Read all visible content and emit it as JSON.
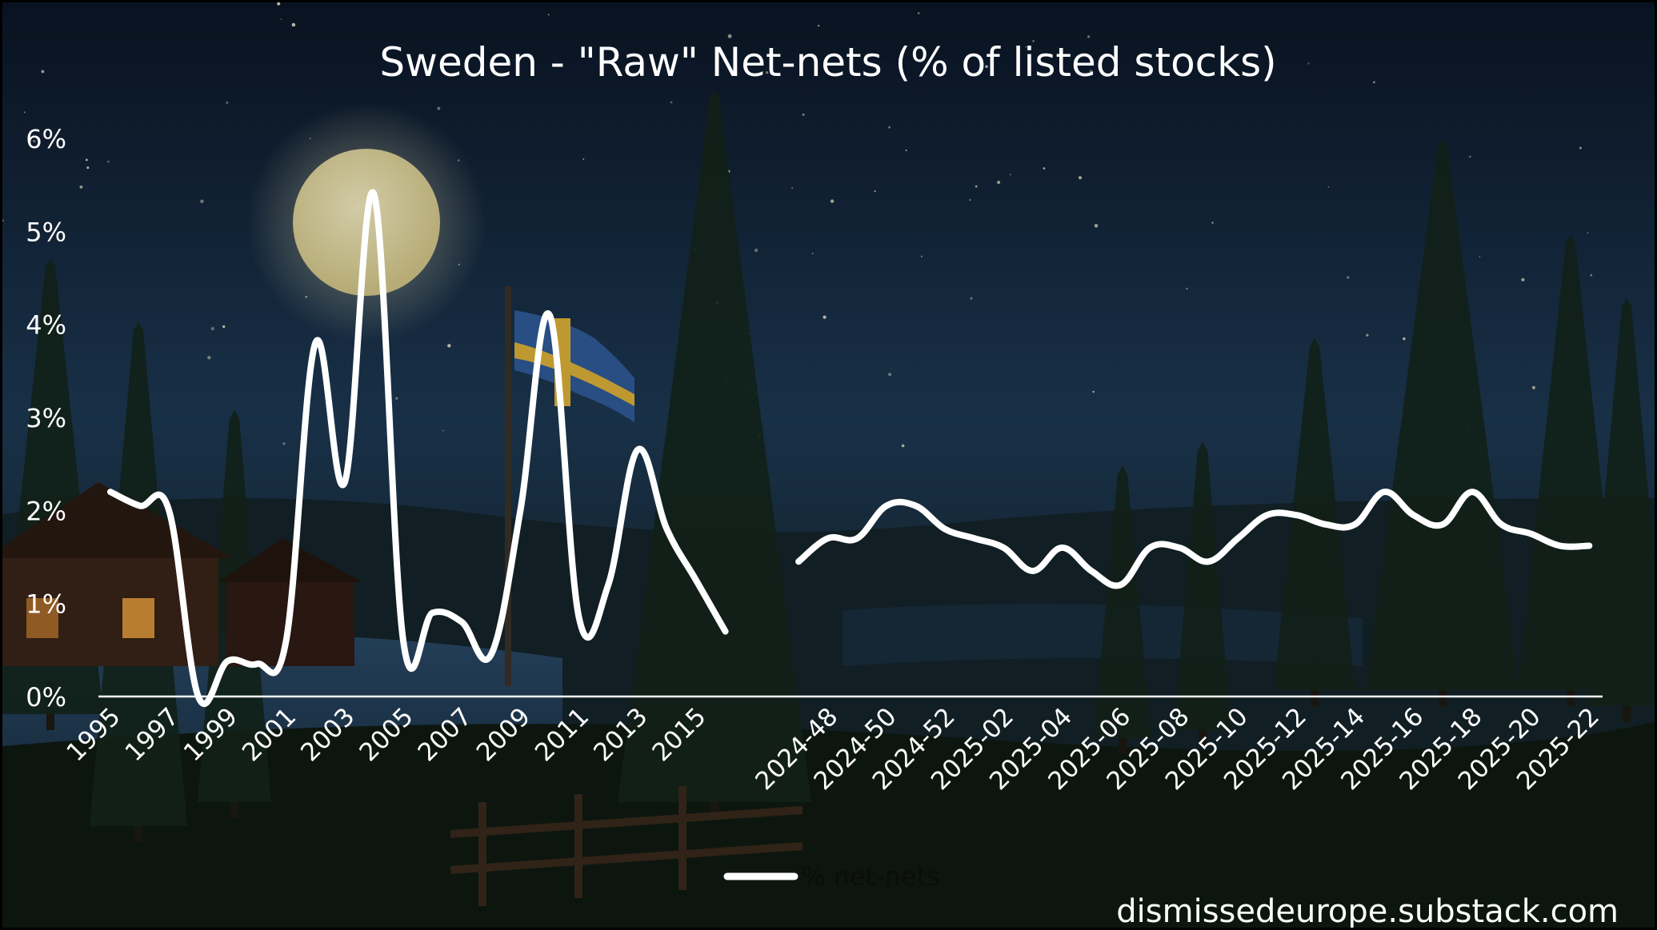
{
  "chart_data": {
    "type": "line",
    "title": "Sweden - \"Raw\" Net-nets (% of listed stocks)",
    "xlabel": "",
    "ylabel": "",
    "ylim": [
      0,
      6
    ],
    "y_ticks": [
      "0%",
      "1%",
      "2%",
      "3%",
      "4%",
      "5%",
      "6%"
    ],
    "grid": false,
    "legend_position": "bottom-center",
    "watermark": "dismissedeurope.substack.com",
    "colors": {
      "line": "#ffffff",
      "sky_top": "#0d1a2b",
      "sky_mid": "#1f3b57",
      "ground": "#0f1a14",
      "moon": "#f1e6b0"
    },
    "series": [
      {
        "name": "% net-nets",
        "segments": [
          {
            "x": [
              "1995",
              "1996",
              "1997",
              "1998",
              "1999",
              "2000",
              "2001",
              "2002",
              "2003",
              "2004",
              "2005",
              "2006",
              "2007",
              "2008",
              "2009",
              "2010",
              "2011",
              "2012",
              "2013",
              "2014",
              "2015",
              "2016"
            ],
            "values": [
              2.2,
              2.05,
              2.0,
              0.0,
              0.38,
              0.35,
              0.6,
              3.8,
              2.3,
              5.4,
              0.6,
              0.9,
              0.8,
              0.45,
              2.0,
              4.1,
              0.85,
              1.2,
              2.65,
              1.8,
              1.25,
              0.7
            ]
          },
          {
            "x": [
              "2024-47",
              "2024-48",
              "2024-49",
              "2024-50",
              "2024-51",
              "2024-52",
              "2025-01",
              "2025-02",
              "2025-03",
              "2025-04",
              "2025-05",
              "2025-06",
              "2025-07",
              "2025-08",
              "2025-09",
              "2025-10",
              "2025-11",
              "2025-12",
              "2025-13",
              "2025-14",
              "2025-15",
              "2025-16",
              "2025-17",
              "2025-18",
              "2025-19",
              "2025-20",
              "2025-21",
              "2025-22"
            ],
            "values": [
              1.45,
              1.7,
              1.7,
              2.05,
              2.05,
              1.8,
              1.7,
              1.6,
              1.35,
              1.6,
              1.35,
              1.2,
              1.6,
              1.6,
              1.45,
              1.7,
              1.95,
              1.95,
              1.85,
              1.85,
              2.2,
              1.95,
              1.85,
              2.2,
              1.85,
              1.75,
              1.62,
              1.62
            ]
          }
        ]
      }
    ],
    "x_tick_labels": [
      "1995",
      "1997",
      "1999",
      "2001",
      "2003",
      "2005",
      "2007",
      "2009",
      "2011",
      "2013",
      "2015",
      "2024-48",
      "2024-50",
      "2024-52",
      "2025-02",
      "2025-04",
      "2025-06",
      "2025-08",
      "2025-10",
      "2025-12",
      "2025-14",
      "2025-16",
      "2025-18",
      "2025-20",
      "2025-22"
    ]
  }
}
